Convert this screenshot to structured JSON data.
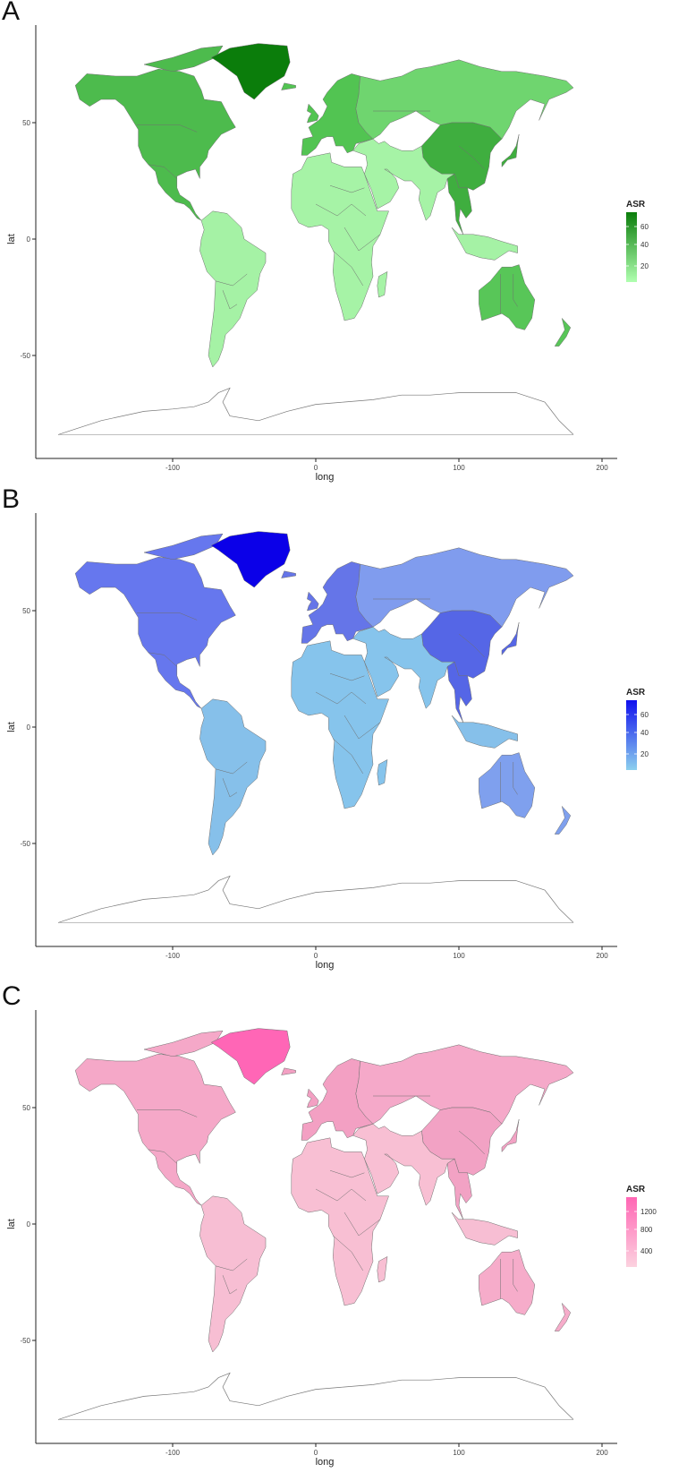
{
  "panels": [
    {
      "id": "A",
      "label": "A",
      "colors": {
        "low": "#a8ffa8",
        "mid": "#5ed15e",
        "high": "#0d8a0d",
        "greenland": "#0b7d0b",
        "namerica": "#4dbb4d",
        "china": "#3fae3f",
        "europe": "#52c452",
        "russia": "#6fd56f",
        "aus": "#58c658",
        "africa": "#a6f3a6",
        "samerica": "#a5f2a5",
        "ocean": "#ffffff"
      },
      "legend": {
        "title": "ASR",
        "ticks": [
          "60",
          "40",
          "20"
        ],
        "top": "#0b7d0b",
        "bottom": "#b0ffb0"
      },
      "xlabel": "long",
      "ylabel": "lat",
      "xticks": [
        "-100",
        "0",
        "100",
        "200"
      ],
      "yticks": [
        "50",
        "0",
        "-50"
      ]
    },
    {
      "id": "B",
      "label": "B",
      "colors": {
        "greenland": "#0b00e8",
        "namerica": "#6677ee",
        "china": "#5566e6",
        "europe": "#6575e8",
        "russia": "#809cee",
        "aus": "#7fa0ee",
        "africa": "#86c4ec",
        "samerica": "#86c0ea",
        "ocean": "#ffffff"
      },
      "legend": {
        "title": "ASR",
        "ticks": [
          "60",
          "40",
          "20"
        ],
        "top": "#1010ee",
        "bottom": "#8cd0ee"
      },
      "xlabel": "long",
      "ylabel": "lat",
      "xticks": [
        "-100",
        "0",
        "100",
        "200"
      ],
      "yticks": [
        "50",
        "0",
        "-50"
      ]
    },
    {
      "id": "C",
      "label": "C",
      "colors": {
        "greenland": "#ff66b6",
        "namerica": "#f5a8c8",
        "china": "#f2a2c4",
        "europe": "#f3a0c3",
        "russia": "#f5a9c9",
        "aus": "#f6acca",
        "africa": "#f8bfd3",
        "samerica": "#f7bed3",
        "ocean": "#ffffff"
      },
      "legend": {
        "title": "ASR",
        "ticks": [
          "1200",
          "800",
          "400"
        ],
        "top": "#ff66b4",
        "bottom": "#fcd2df"
      },
      "xlabel": "long",
      "ylabel": "lat",
      "xticks": [
        "-100",
        "0",
        "100",
        "200"
      ],
      "yticks": [
        "50",
        "0",
        "-50"
      ]
    }
  ]
}
